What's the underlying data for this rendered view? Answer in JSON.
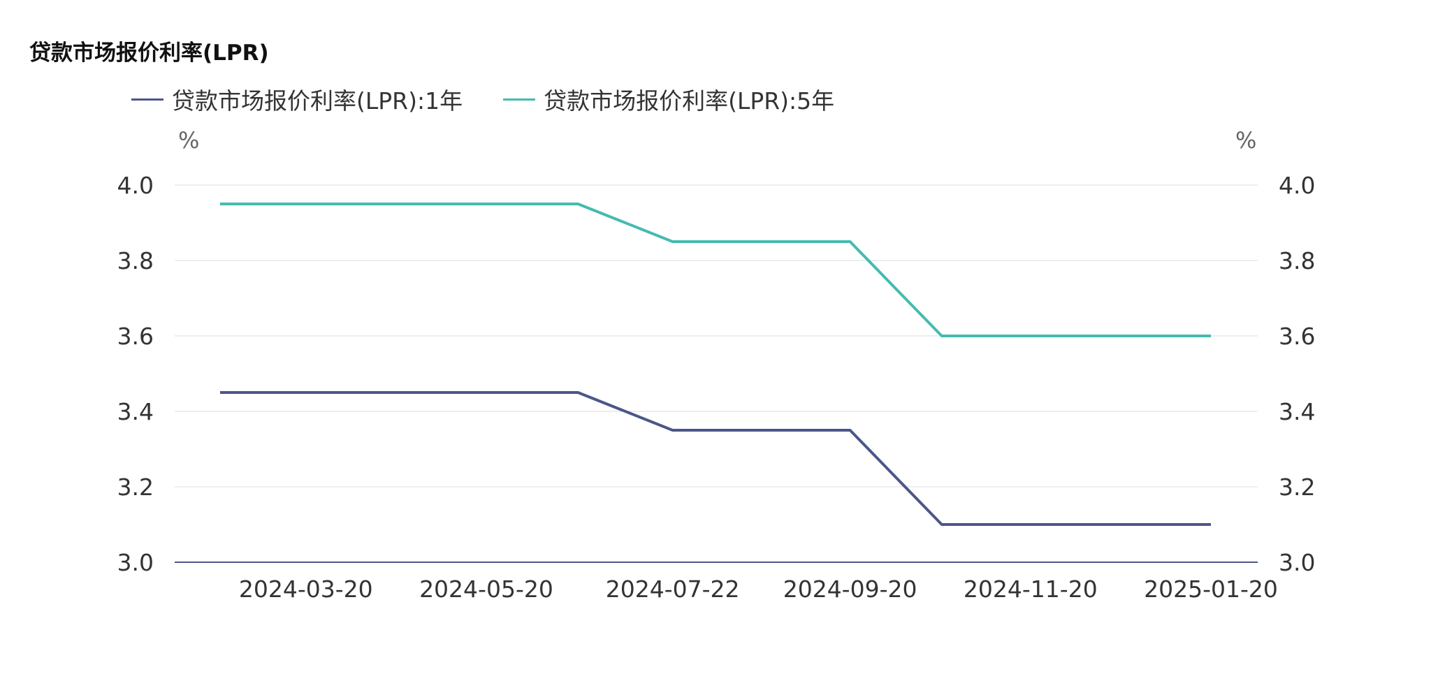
{
  "chart_data": {
    "type": "line",
    "title": "贷款市场报价利率(LPR)",
    "y_unit_left": "%",
    "y_unit_right": "%",
    "ylim": [
      3.0,
      4.0
    ],
    "y_ticks": [
      "3.0",
      "3.2",
      "3.4",
      "3.6",
      "3.8",
      "4.0"
    ],
    "x_tick_labels": [
      "2024-03-20",
      "2024-05-20",
      "2024-07-22",
      "2024-09-20",
      "2024-11-20",
      "2025-01-20"
    ],
    "x": [
      "2024-02-20",
      "2024-03-20",
      "2024-04-22",
      "2024-05-20",
      "2024-06-20",
      "2024-07-22",
      "2024-08-20",
      "2024-09-20",
      "2024-10-21",
      "2024-11-20",
      "2024-12-20",
      "2025-01-20"
    ],
    "grid": true,
    "legend_position": "top-left",
    "series": [
      {
        "name": "贷款市场报价利率(LPR):1年",
        "color": "#4b5788",
        "values": [
          3.45,
          3.45,
          3.45,
          3.45,
          3.45,
          3.35,
          3.35,
          3.35,
          3.1,
          3.1,
          3.1,
          3.1
        ]
      },
      {
        "name": "贷款市场报价利率(LPR):5年",
        "color": "#44bbb0",
        "values": [
          3.95,
          3.95,
          3.95,
          3.95,
          3.95,
          3.85,
          3.85,
          3.85,
          3.6,
          3.6,
          3.6,
          3.6
        ]
      }
    ]
  }
}
